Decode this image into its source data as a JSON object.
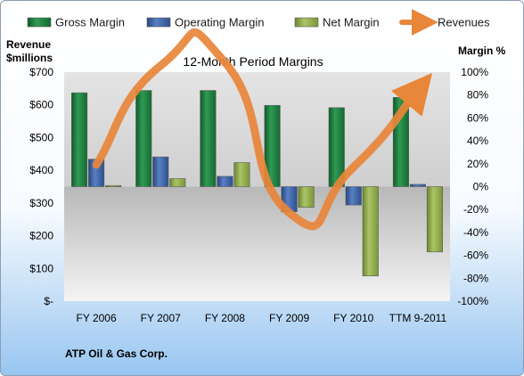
{
  "chart_data": {
    "type": "bar",
    "title": "12-Month Period Margins",
    "ylabel_left": "Revenue $millions",
    "ylabel_left_lines": [
      "Revenue",
      "$millions"
    ],
    "ylabel_right": "Margin %",
    "categories": [
      "FY 2006",
      "FY 2007",
      "FY 2008",
      "FY 2009",
      "FY 2010",
      "TTM 9-2011"
    ],
    "ylim_left": [
      0,
      700
    ],
    "ylim_right": [
      -100,
      100
    ],
    "left_ticks": [
      "$-",
      "$100",
      "$200",
      "$300",
      "$400",
      "$500",
      "$600",
      "$700"
    ],
    "right_ticks": [
      "-100%",
      "-80%",
      "-60%",
      "-40%",
      "-20%",
      "0%",
      "20%",
      "40%",
      "60%",
      "80%",
      "100%"
    ],
    "series": [
      {
        "name": "Gross Margin",
        "axis": "right",
        "color": "#1e7a3c",
        "values": [
          82,
          84,
          84,
          71,
          69,
          78
        ]
      },
      {
        "name": "Operating Margin",
        "axis": "right",
        "color": "#3a5fa5",
        "values": [
          24,
          26,
          9,
          -22,
          -16,
          2
        ]
      },
      {
        "name": "Net Margin",
        "axis": "right",
        "color": "#8ea846",
        "values": [
          1,
          7,
          21,
          -18,
          -78,
          -57
        ]
      },
      {
        "name": "Revenues",
        "axis": "left",
        "type": "line",
        "color": "#e8863a",
        "values": [
          417,
          720,
          730,
          270,
          410,
          645
        ]
      }
    ],
    "legend_position": "top",
    "grid": false,
    "footer": "ATP Oil & Gas Corp."
  }
}
